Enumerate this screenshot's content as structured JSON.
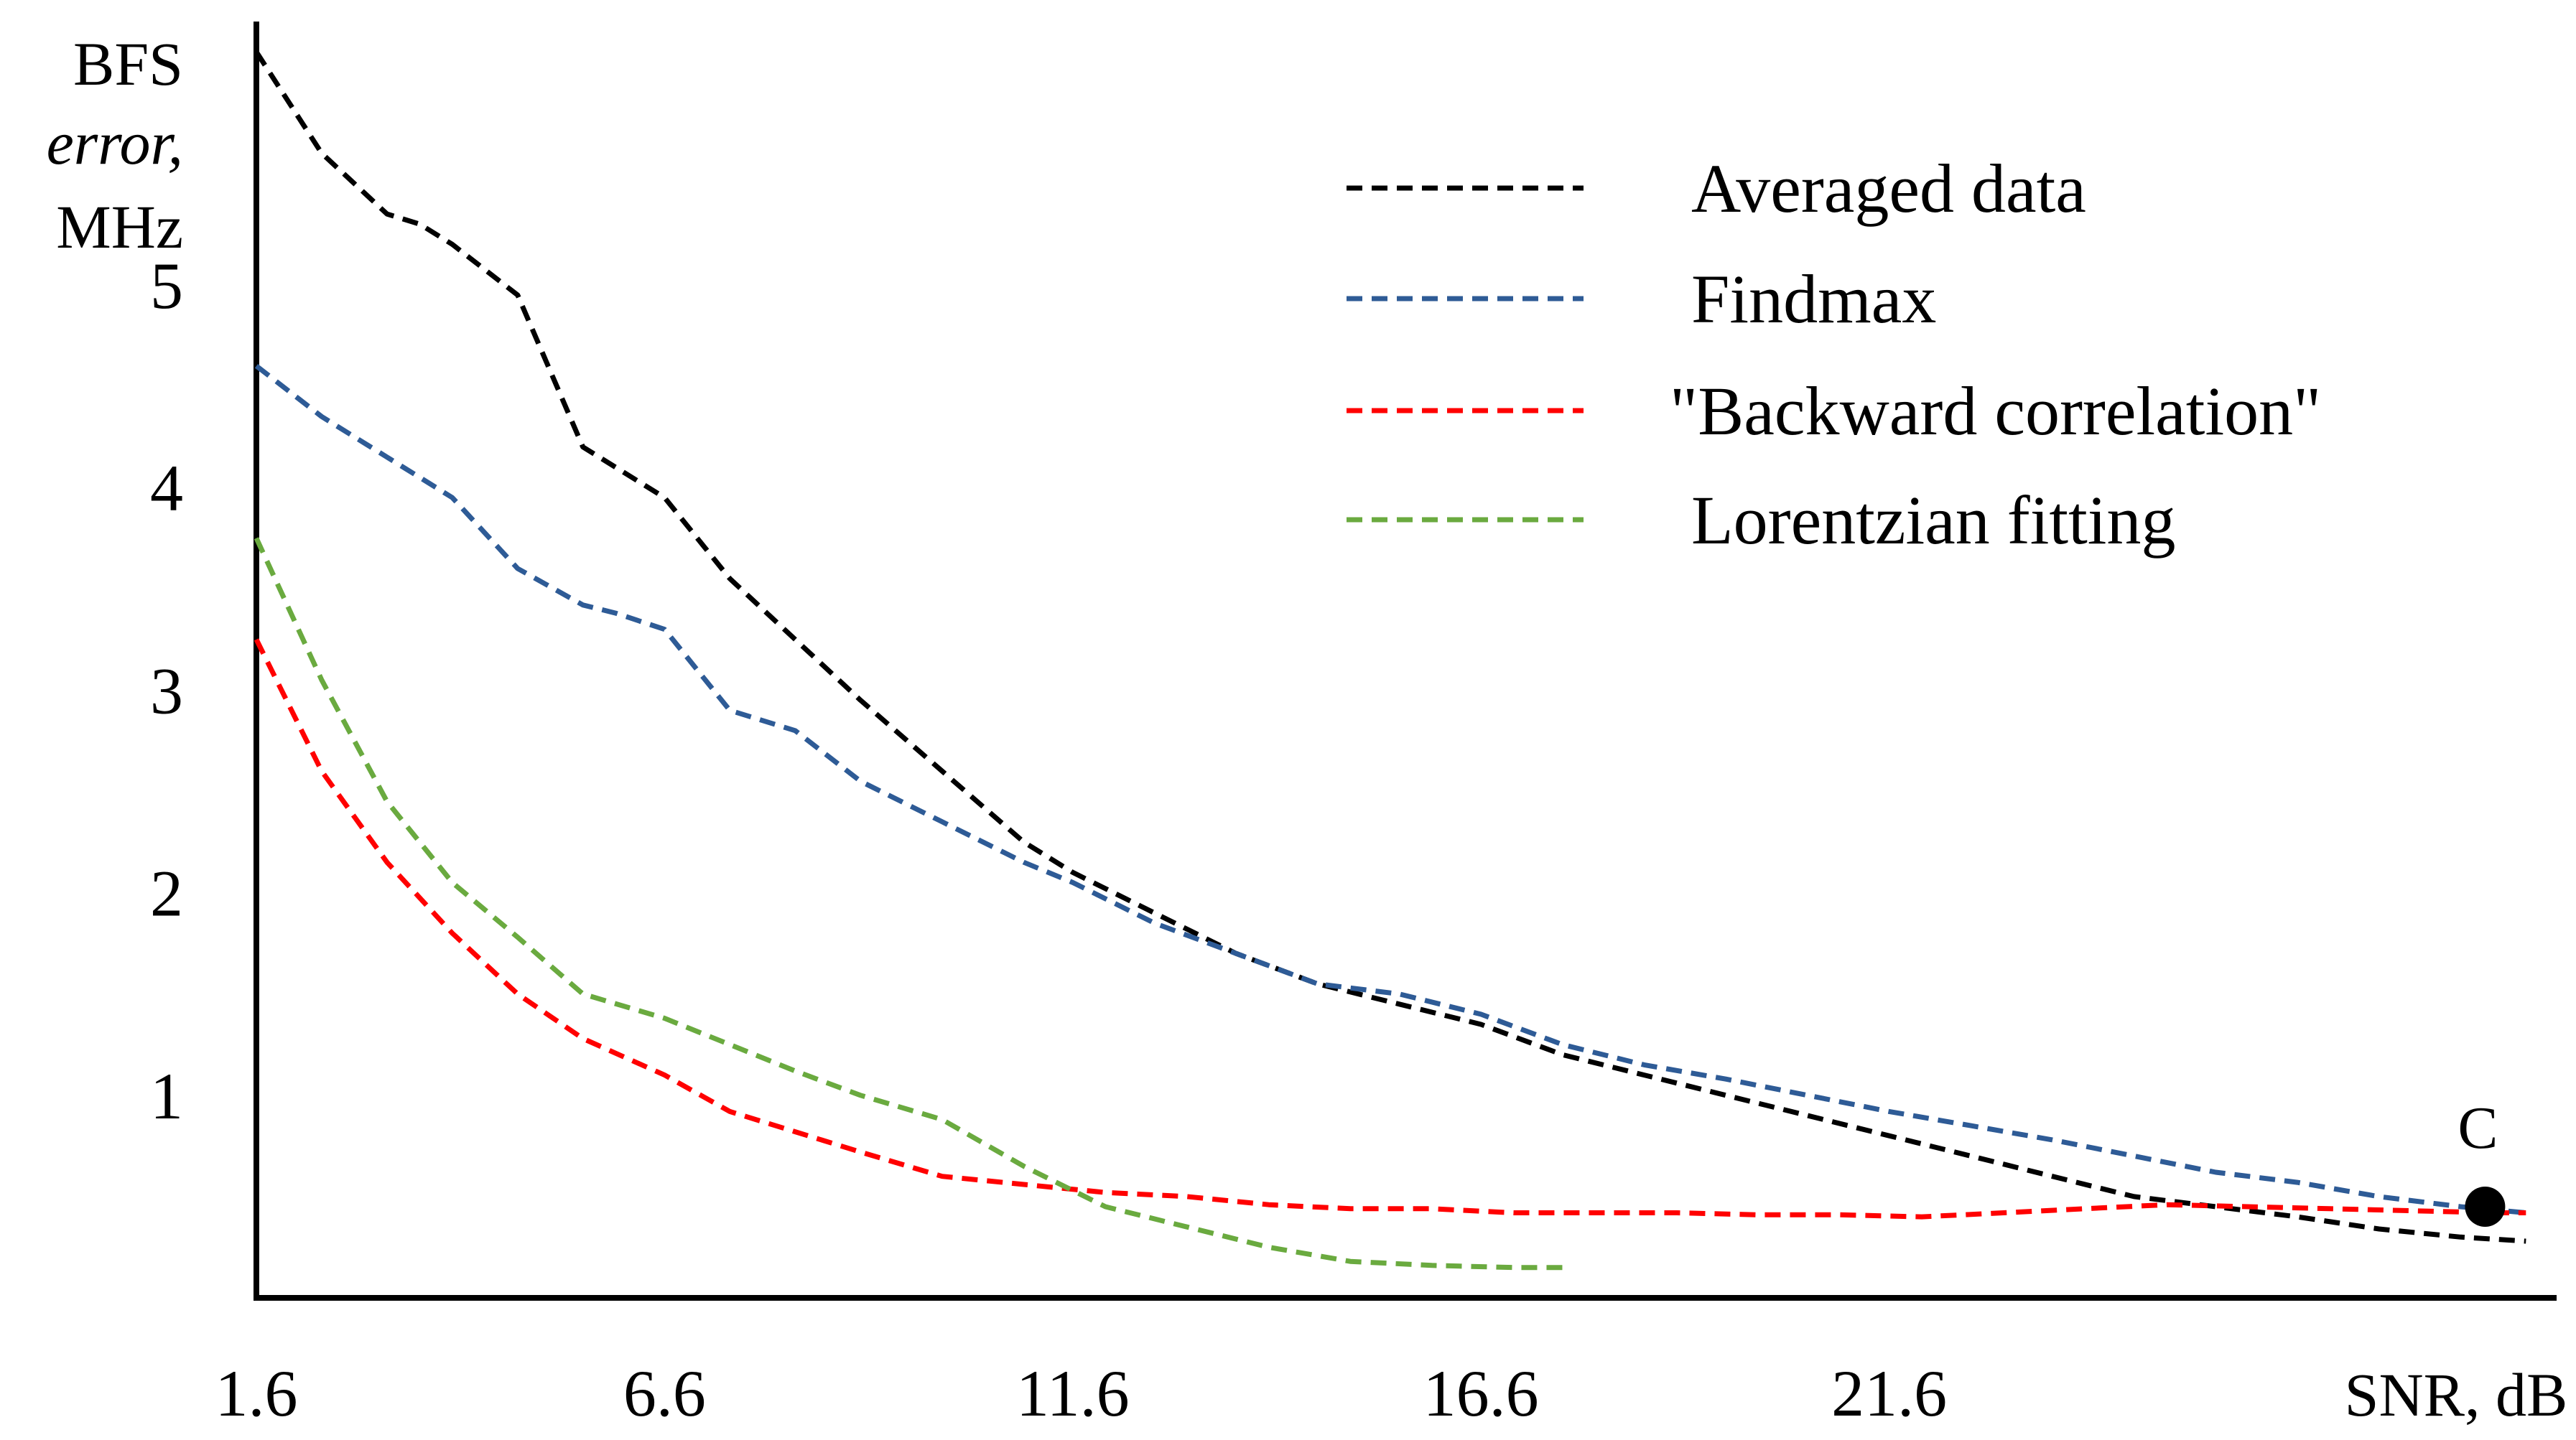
{
  "chart_data": {
    "type": "line",
    "title": "",
    "ylabel_lines": [
      "BFS",
      "error,",
      "MHz"
    ],
    "xlabel": "SNR, dB",
    "xlim": [
      1.6,
      29.6
    ],
    "ylim": [
      0,
      6.3
    ],
    "x_ticks": [
      1.6,
      6.6,
      11.6,
      16.6,
      21.6
    ],
    "x_tick_labels": [
      "1.6",
      "6.6",
      "11.6",
      "16.6",
      "21.6"
    ],
    "y_ticks": [
      1,
      2,
      3,
      4,
      5
    ],
    "y_tick_labels": [
      "1",
      "2",
      "3",
      "4",
      "5"
    ],
    "grid": false,
    "legend_position": "top-right",
    "series": [
      {
        "name": "Averaged data",
        "color": "#000000",
        "x": [
          1.6,
          2.4,
          3.2,
          3.6,
          4.0,
          4.8,
          5.6,
          6.0,
          6.6,
          7.4,
          8.2,
          9.0,
          10.0,
          11.0,
          11.6,
          12.6,
          13.6,
          14.6,
          15.6,
          16.6,
          17.6,
          18.6,
          19.6,
          20.6,
          21.6,
          22.6,
          23.6,
          24.6,
          25.6,
          26.6,
          27.6,
          28.6,
          29.4
        ],
        "y": [
          6.15,
          5.65,
          5.35,
          5.3,
          5.2,
          4.95,
          4.2,
          4.1,
          3.95,
          3.55,
          3.25,
          2.95,
          2.6,
          2.25,
          2.1,
          1.9,
          1.7,
          1.55,
          1.45,
          1.35,
          1.2,
          1.1,
          1.0,
          0.9,
          0.8,
          0.7,
          0.6,
          0.5,
          0.45,
          0.4,
          0.34,
          0.3,
          0.28
        ]
      },
      {
        "name": "Findmax",
        "color": "#2E5B96",
        "x": [
          1.6,
          2.4,
          3.2,
          3.6,
          4.0,
          4.8,
          5.6,
          6.0,
          6.6,
          7.4,
          8.2,
          9.0,
          10.0,
          11.0,
          11.6,
          12.6,
          13.6,
          14.6,
          15.6,
          16.6,
          17.6,
          18.6,
          19.6,
          20.6,
          21.6,
          22.6,
          23.6,
          24.6,
          25.6,
          26.6,
          27.6,
          28.6,
          29.4
        ],
        "y": [
          4.6,
          4.35,
          4.15,
          4.05,
          3.95,
          3.6,
          3.42,
          3.38,
          3.3,
          2.9,
          2.8,
          2.55,
          2.35,
          2.15,
          2.05,
          1.85,
          1.7,
          1.55,
          1.5,
          1.4,
          1.25,
          1.15,
          1.08,
          1.0,
          0.92,
          0.85,
          0.78,
          0.7,
          0.62,
          0.57,
          0.5,
          0.45,
          0.42
        ]
      },
      {
        "name": "\"Backward correlation\"",
        "color": "#FF0000",
        "x": [
          1.6,
          2.4,
          3.2,
          4.0,
          4.8,
          5.6,
          6.6,
          7.4,
          8.2,
          9.0,
          10.0,
          11.0,
          12.0,
          13.0,
          14.0,
          15.0,
          16.0,
          17.0,
          18.0,
          19.0,
          20.0,
          21.0,
          22.0,
          23.0,
          24.0,
          25.0,
          26.0,
          27.0,
          28.0,
          29.0,
          29.4
        ],
        "y": [
          3.25,
          2.6,
          2.15,
          1.8,
          1.5,
          1.28,
          1.1,
          0.92,
          0.82,
          0.72,
          0.6,
          0.56,
          0.52,
          0.5,
          0.46,
          0.44,
          0.44,
          0.42,
          0.42,
          0.42,
          0.41,
          0.41,
          0.4,
          0.42,
          0.44,
          0.46,
          0.45,
          0.44,
          0.43,
          0.42,
          0.42
        ]
      },
      {
        "name": "Lorentzian fitting",
        "color": "#6AAA3F",
        "x": [
          1.6,
          2.4,
          3.2,
          4.0,
          4.8,
          5.6,
          6.6,
          7.4,
          8.2,
          9.0,
          10.0,
          11.0,
          12.0,
          13.0,
          14.0,
          15.0,
          16.0,
          17.0,
          17.6
        ],
        "y": [
          3.75,
          3.05,
          2.45,
          2.05,
          1.78,
          1.5,
          1.38,
          1.25,
          1.12,
          1.0,
          0.88,
          0.65,
          0.45,
          0.35,
          0.25,
          0.18,
          0.16,
          0.15,
          0.15
        ]
      }
    ],
    "annotations": [
      {
        "text": "C",
        "x": 28.9,
        "y": 0.45
      }
    ]
  }
}
